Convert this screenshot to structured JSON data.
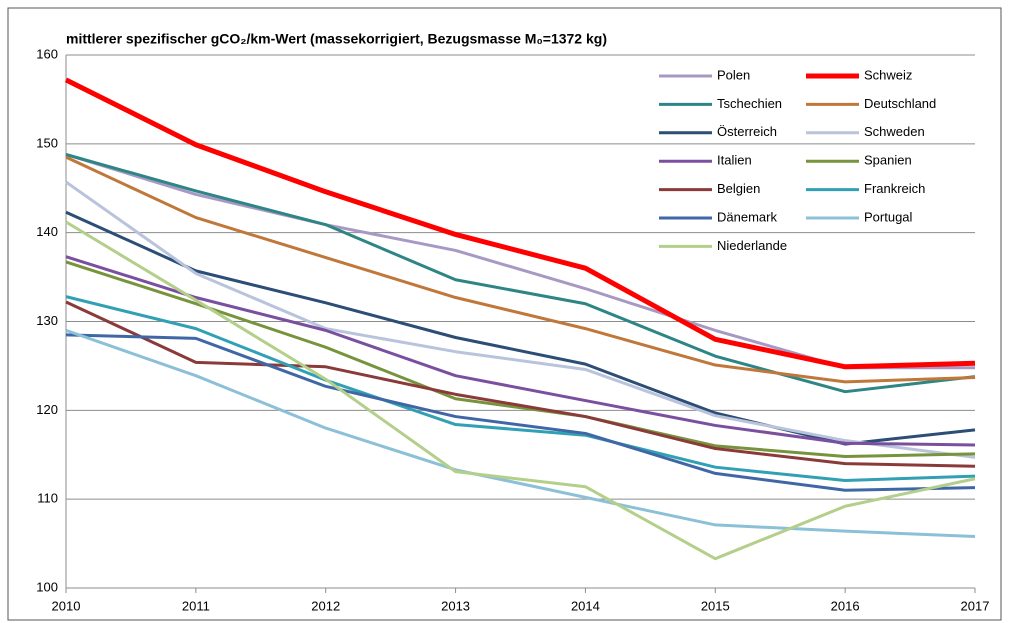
{
  "chart_data": {
    "type": "line",
    "title": "mittlerer spezifischer gCO₂/km-Wert (massekorrigiert, Bezugsmasse M₀=1372 kg)",
    "x": [
      2010,
      2011,
      2012,
      2013,
      2014,
      2015,
      2016,
      2017
    ],
    "xlim": [
      2010,
      2017
    ],
    "xticks": [
      2010,
      2011,
      2012,
      2013,
      2014,
      2015,
      2016,
      2017
    ],
    "ylim": [
      100,
      160
    ],
    "yticks": [
      100,
      110,
      120,
      130,
      140,
      150,
      160
    ],
    "grid": true,
    "legend": "upper right",
    "series": [
      {
        "name": "Polen",
        "color": "#a899c4",
        "width": 3,
        "values": [
          148.8,
          144.3,
          140.9,
          138.0,
          133.7,
          129.0,
          124.8,
          124.8
        ]
      },
      {
        "name": "Schweiz",
        "color": "#ff0000",
        "width": 5,
        "values": [
          157.2,
          149.9,
          144.6,
          139.8,
          136.0,
          128.0,
          124.9,
          125.3
        ]
      },
      {
        "name": "Tschechien",
        "color": "#2e8585",
        "width": 3,
        "values": [
          148.8,
          144.7,
          140.9,
          134.7,
          132.0,
          126.1,
          122.1,
          123.8
        ]
      },
      {
        "name": "Deutschland",
        "color": "#c0773a",
        "width": 3,
        "values": [
          148.5,
          141.7,
          137.2,
          132.7,
          129.2,
          125.1,
          123.2,
          123.7
        ]
      },
      {
        "name": "Österreich",
        "color": "#2c4d75",
        "width": 3,
        "values": [
          142.3,
          135.7,
          132.1,
          128.2,
          125.2,
          119.7,
          116.2,
          117.8
        ]
      },
      {
        "name": "Schweden",
        "color": "#b9c4dc",
        "width": 3,
        "values": [
          145.7,
          135.4,
          129.2,
          126.6,
          124.6,
          119.4,
          116.6,
          114.7
        ]
      },
      {
        "name": "Italien",
        "color": "#7b4fa0",
        "width": 3,
        "values": [
          137.3,
          132.7,
          129.0,
          123.9,
          121.1,
          118.3,
          116.3,
          116.1
        ]
      },
      {
        "name": "Spanien",
        "color": "#77933c",
        "width": 3,
        "values": [
          136.7,
          132.0,
          127.1,
          121.3,
          119.3,
          116.0,
          114.8,
          115.1
        ]
      },
      {
        "name": "Belgien",
        "color": "#8b3a3a",
        "width": 3,
        "values": [
          132.2,
          125.4,
          124.9,
          121.8,
          119.3,
          115.7,
          114.0,
          113.7
        ]
      },
      {
        "name": "Frankreich",
        "color": "#31a0b4",
        "width": 3,
        "values": [
          132.8,
          129.2,
          123.4,
          118.4,
          117.2,
          113.6,
          112.1,
          112.6
        ]
      },
      {
        "name": "Dänemark",
        "color": "#4067a5",
        "width": 3,
        "values": [
          128.5,
          128.1,
          122.7,
          119.3,
          117.4,
          112.9,
          111.0,
          111.3
        ]
      },
      {
        "name": "Portugal",
        "color": "#8cc0d8",
        "width": 3,
        "values": [
          129.0,
          123.9,
          118.0,
          113.3,
          110.2,
          107.1,
          106.4,
          105.8
        ]
      },
      {
        "name": "Niederlande",
        "color": "#b3cf8a",
        "width": 3,
        "values": [
          141.2,
          132.4,
          123.5,
          113.1,
          111.4,
          103.3,
          109.2,
          112.3
        ]
      }
    ]
  }
}
